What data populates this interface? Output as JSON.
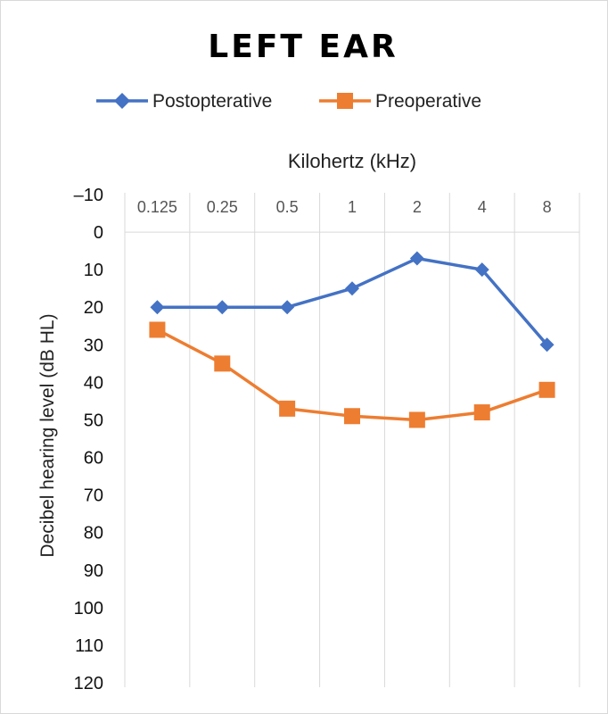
{
  "chart_data": {
    "type": "line",
    "title": "LEFT EAR",
    "xlabel": "Kilohertz (kHz)",
    "ylabel": "Decibel hearing level (dB HL)",
    "categories": [
      "0.125",
      "0.25",
      "0.5",
      "1",
      "2",
      "4",
      "8"
    ],
    "y_ticks": [
      "–10",
      "0",
      "10",
      "20",
      "30",
      "40",
      "50",
      "60",
      "70",
      "80",
      "90",
      "100",
      "110",
      "120"
    ],
    "ylim": [
      -10,
      120
    ],
    "y_inverted": true,
    "x_axis_position": "top",
    "grid": "vertical",
    "legend_position": "top",
    "series": [
      {
        "name": "Postopterative",
        "color": "#4472C4",
        "marker": "diamond",
        "values": [
          20,
          20,
          20,
          15,
          7,
          10,
          30
        ]
      },
      {
        "name": "Preoperative",
        "color": "#ED7D31",
        "marker": "square",
        "values": [
          26,
          35,
          47,
          49,
          50,
          48,
          42
        ]
      }
    ]
  }
}
